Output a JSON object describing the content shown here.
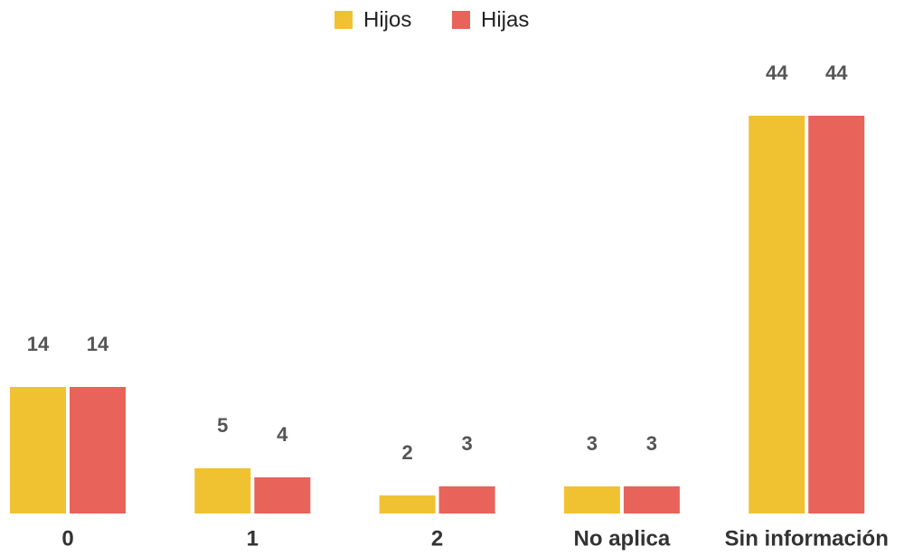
{
  "chart_data": {
    "type": "bar",
    "categories": [
      "0",
      "1",
      "2",
      "No aplica",
      "Sin información"
    ],
    "series": [
      {
        "name": "Hijos",
        "color": "#f0c232",
        "values": [
          14,
          5,
          2,
          3,
          44
        ]
      },
      {
        "name": "Hijas",
        "color": "#e8635a",
        "values": [
          14,
          4,
          3,
          3,
          44
        ]
      }
    ],
    "legend": "top"
  }
}
